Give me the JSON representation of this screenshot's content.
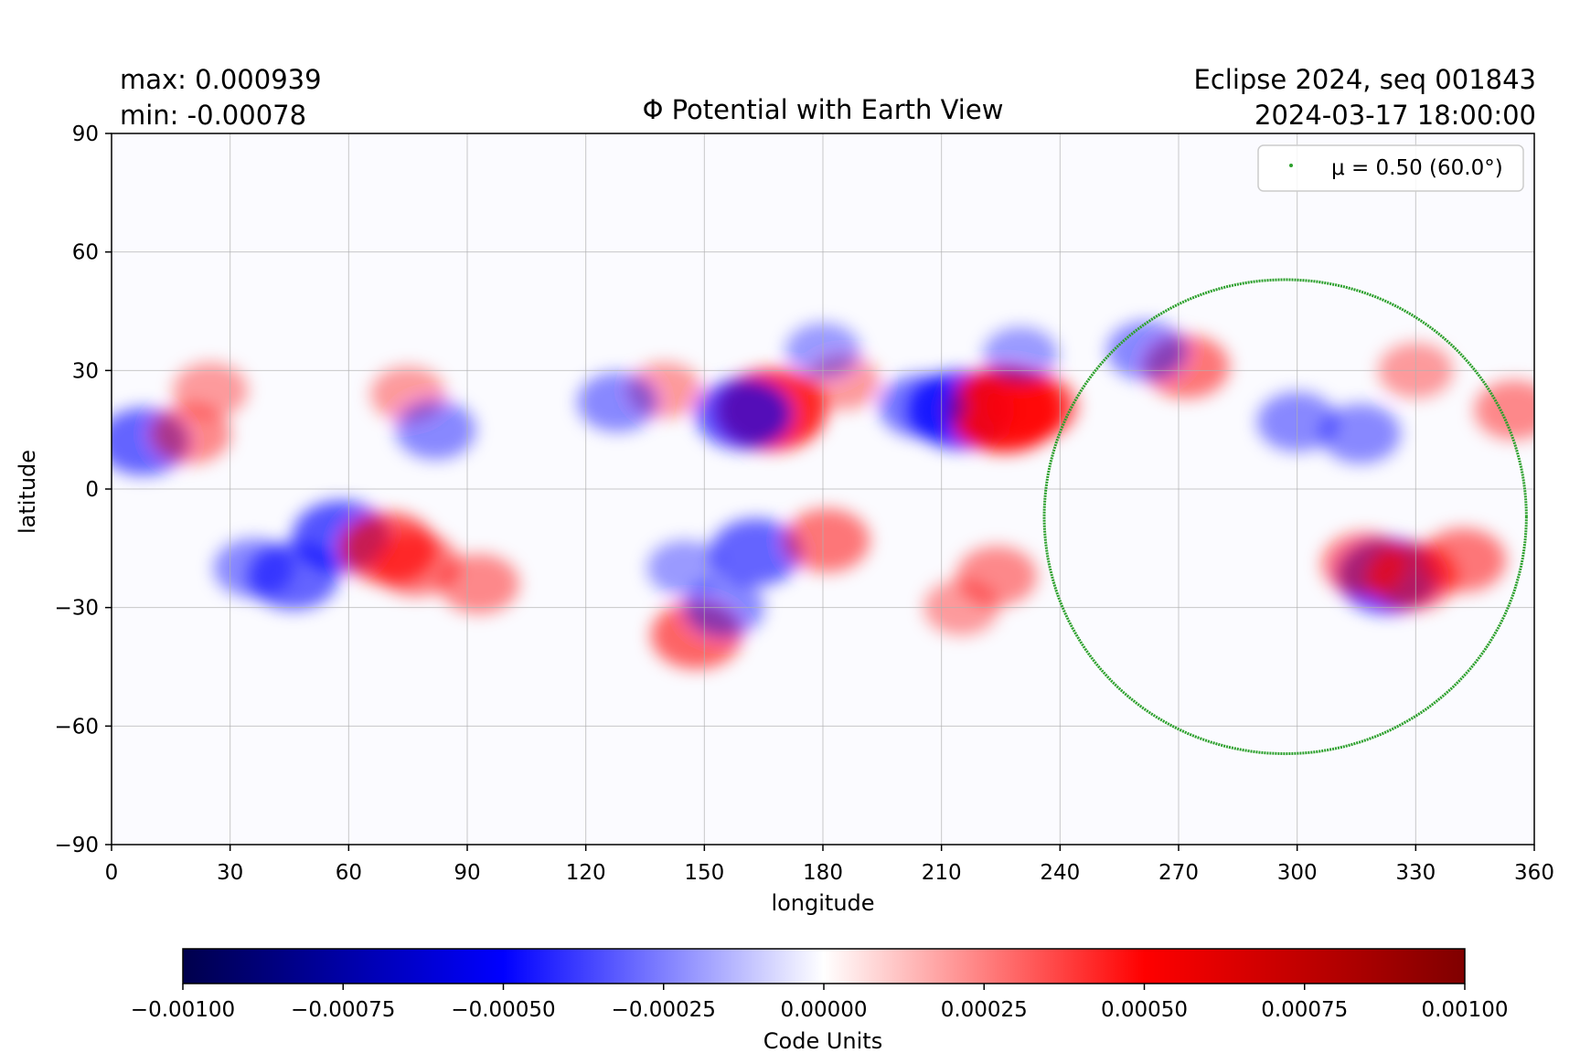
{
  "header": {
    "max_line": "max:  0.000939",
    "min_line": "min:  -0.00078",
    "title": "Φ Potential with Earth View",
    "event_line": "Eclipse 2024, seq 001843",
    "datetime_line": "2024-03-17 18:00:00"
  },
  "colors": {
    "negative": "#0000ff",
    "positive": "#ff0000",
    "zero": "#ffffff",
    "circle": "#2ca02c",
    "grid": "#b0b0b0"
  },
  "chart_data": {
    "type": "heatmap",
    "title": "Φ Potential with Earth View",
    "xlabel": "longitude",
    "ylabel": "latitude",
    "xlim": [
      0,
      360
    ],
    "ylim": [
      -90,
      90
    ],
    "xticks": [
      0,
      30,
      60,
      90,
      120,
      150,
      180,
      210,
      240,
      270,
      300,
      330,
      360
    ],
    "xtick_labels": [
      "0",
      "30",
      "60",
      "90",
      "120",
      "150",
      "180",
      "210",
      "240",
      "270",
      "300",
      "330",
      "360"
    ],
    "yticks": [
      90,
      60,
      30,
      0,
      -30,
      -60,
      -90
    ],
    "ytick_labels": [
      "90",
      "60",
      "30",
      "0",
      "−30",
      "−60",
      "−90"
    ],
    "grid": true,
    "colormap": "seismic",
    "legend": {
      "placement": "upper right",
      "entries": [
        "μ = 0.50 (60.0°)"
      ]
    },
    "colorbar": {
      "label": "Code Units",
      "range": [
        -0.001,
        0.001
      ],
      "ticks": [
        -0.001,
        -0.00075,
        -0.0005,
        -0.00025,
        0,
        0.00025,
        0.0005,
        0.00075,
        0.001
      ],
      "tick_labels": [
        "−0.00100",
        "−0.00075",
        "−0.00050",
        "−0.00025",
        "0.00000",
        "0.00025",
        "0.00050",
        "0.00075",
        "0.00100"
      ]
    },
    "mu_circle": {
      "label": "μ = 0.50 (60.0°)",
      "center_lon": 297,
      "center_lat": -7,
      "lon_radius": 61,
      "lat_north": 53,
      "lat_south": -67
    },
    "features": [
      {
        "lon": 167,
        "lat": 20,
        "value": 0.00085
      },
      {
        "lon": 160,
        "lat": 19,
        "value": -0.0006
      },
      {
        "lon": 215,
        "lat": 20,
        "value": -0.00078
      },
      {
        "lon": 226,
        "lat": 20,
        "value": 0.000939
      },
      {
        "lon": 233,
        "lat": 21,
        "value": 0.0005
      },
      {
        "lon": 205,
        "lat": 21,
        "value": -0.0004
      },
      {
        "lon": 8,
        "lat": 12,
        "value": -0.0005
      },
      {
        "lon": 20,
        "lat": 14,
        "value": 0.0003
      },
      {
        "lon": 46,
        "lat": -22,
        "value": -0.0005
      },
      {
        "lon": 58,
        "lat": -12,
        "value": -0.0006
      },
      {
        "lon": 36,
        "lat": -20,
        "value": -0.0003
      },
      {
        "lon": 70,
        "lat": -15,
        "value": 0.0006
      },
      {
        "lon": 77,
        "lat": -19,
        "value": 0.0004
      },
      {
        "lon": 93,
        "lat": -24,
        "value": 0.0003
      },
      {
        "lon": 163,
        "lat": -16,
        "value": -0.0005
      },
      {
        "lon": 148,
        "lat": -37,
        "value": 0.0005
      },
      {
        "lon": 181,
        "lat": -13,
        "value": 0.0004
      },
      {
        "lon": 224,
        "lat": -22,
        "value": 0.0003
      },
      {
        "lon": 272,
        "lat": 31,
        "value": 0.0004
      },
      {
        "lon": 262,
        "lat": 35,
        "value": -0.0003
      },
      {
        "lon": 300,
        "lat": 17,
        "value": -0.0003
      },
      {
        "lon": 316,
        "lat": 14,
        "value": -0.0003
      },
      {
        "lon": 323,
        "lat": -22,
        "value": -0.0007
      },
      {
        "lon": 317,
        "lat": -19,
        "value": 0.0004
      },
      {
        "lon": 329,
        "lat": -22,
        "value": 0.0005
      },
      {
        "lon": 342,
        "lat": -18,
        "value": 0.0004
      },
      {
        "lon": 25,
        "lat": 25,
        "value": 0.0002
      },
      {
        "lon": 75,
        "lat": 24,
        "value": 0.0002
      },
      {
        "lon": 82,
        "lat": 15,
        "value": -0.0003
      },
      {
        "lon": 140,
        "lat": 25,
        "value": 0.0002
      },
      {
        "lon": 128,
        "lat": 22,
        "value": -0.0003
      },
      {
        "lon": 185,
        "lat": 27,
        "value": 0.0002
      },
      {
        "lon": 180,
        "lat": 35,
        "value": -0.0002
      },
      {
        "lon": 230,
        "lat": 34,
        "value": -0.0002
      },
      {
        "lon": 355,
        "lat": 20,
        "value": 0.0003
      },
      {
        "lon": 330,
        "lat": 30,
        "value": 0.0002
      },
      {
        "lon": 215,
        "lat": -30,
        "value": 0.0002
      },
      {
        "lon": 145,
        "lat": -20,
        "value": -0.0002
      },
      {
        "lon": 155,
        "lat": -30,
        "value": -0.0003
      }
    ]
  }
}
